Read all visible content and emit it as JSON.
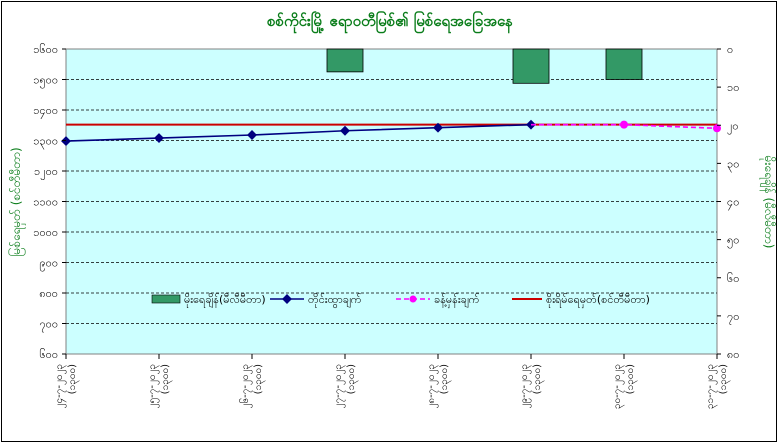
{
  "chart_data": {
    "type": "line",
    "title": "စစ်ကိုင်းမြို့ ဧရာဝတီမြစ်၏ မြစ်ရေအခြေအနေ",
    "ylabel_left": "မြစ်ရေမှတ် (စင်တီမီတာ)",
    "ylabel_right": "မိုးရေချိန် (မီလီမီတာ)",
    "left_axis": {
      "min": 600,
      "max": 1600,
      "step": 100,
      "tick_labels": [
        "၆၀၀",
        "၇၀၀",
        "၈၀၀",
        "၉၀၀",
        "၁၀၀၀",
        "၁၁၀၀",
        "၁၂၀၀",
        "၁၃၀၀",
        "၁၄၀၀",
        "၁၅၀၀",
        "၁၆၀၀"
      ]
    },
    "right_axis": {
      "min": 0,
      "max": 80,
      "step": 10,
      "reversed": true,
      "tick_labels": [
        "၀",
        "၁၀",
        "၂၀",
        "၃၀",
        "၄၀",
        "၅၀",
        "၆၀",
        "၇၀",
        "၈၀"
      ]
    },
    "categories": [
      "၂၄-၇-၂၀၂၃ (၁၃၀၀)",
      "၂၅-၇-၂၀၂၃ (၁၃၀၀)",
      "၂၆-၇-၂၀၂၃ (၁၃၀၀)",
      "၂၇-၇-၂၀၂၃ (၁၃၀၀)",
      "၂၈-၇-၂၀၂၃ (၁၃၀၀)",
      "၂၉-၇-၂၀၂၃ (၁၃၀၀)",
      "၃၀-၇-၂၀၂၃ (၁၃၀၀)",
      "၃၁-၇-၂၀၂၃ (၁၃၀၀)"
    ],
    "series": [
      {
        "name": "မိုးရေချိန်(မီလီမီတာ)",
        "kind": "bar",
        "axis": "right",
        "color": "#339966",
        "values": [
          0,
          0,
          0,
          6,
          0,
          9,
          8,
          0
        ]
      },
      {
        "name": "တိုင်းထွာချက်",
        "kind": "line",
        "axis": "left",
        "color": "#000080",
        "values": [
          1298,
          1308,
          1318,
          1332,
          1342,
          1352,
          null,
          null
        ]
      },
      {
        "name": "ခန့်မှန်းချက်",
        "kind": "dashed-line",
        "axis": "left",
        "color": "#ff00ff",
        "values": [
          null,
          null,
          null,
          null,
          null,
          1352,
          1352,
          1340
        ]
      },
      {
        "name": "စိုးရိမ်ရေမှတ်(စင်တီမီတာ)",
        "kind": "reference-line",
        "axis": "left",
        "color": "#cc0000",
        "value": 1352
      }
    ],
    "grid": true,
    "legend": "inside-bottom-center",
    "plot_background": "#ccffff"
  }
}
